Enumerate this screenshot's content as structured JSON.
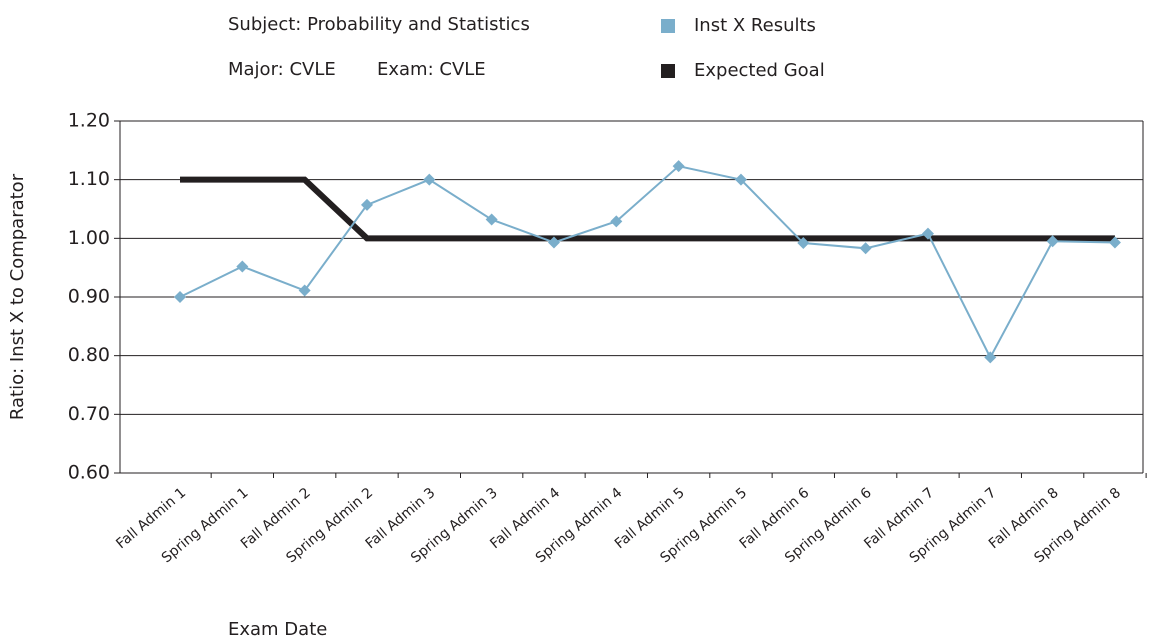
{
  "chart_data": {
    "type": "line",
    "title": "Subject: Probability and Statistics",
    "subtitle": [
      "Major: CVLE",
      "Exam: CVLE"
    ],
    "x_label": "Exam Date",
    "y_label": "Ratio: Inst X to Comparator",
    "categories": [
      "Fall Admin 1",
      "Spring Admin 1",
      "Fall Admin 2",
      "Spring Admin 2",
      "Fall Admin 3",
      "Spring Admin 3",
      "Fall Admin 4",
      "Spring Admin 4",
      "Fall Admin 5",
      "Spring Admin 5",
      "Fall Admin 6",
      "Spring Admin 6",
      "Fall Admin 7",
      "Spring Admin 7",
      "Fall Admin 8",
      "Spring Admin 8"
    ],
    "series": [
      {
        "name": "Inst X Results",
        "color": "#7aaecb",
        "marker": "diamond",
        "values": [
          0.9,
          0.952,
          0.911,
          1.057,
          1.1,
          1.032,
          0.993,
          1.029,
          1.123,
          1.1,
          0.992,
          0.983,
          1.008,
          0.797,
          0.995,
          0.993
        ]
      },
      {
        "name": "Expected Goal",
        "color": "#231f20",
        "marker": null,
        "values": [
          1.1,
          1.1,
          1.1,
          1.0,
          1.0,
          1.0,
          1.0,
          1.0,
          1.0,
          1.0,
          1.0,
          1.0,
          1.0,
          1.0,
          1.0,
          1.0
        ]
      }
    ],
    "ylim": [
      0.6,
      1.2
    ],
    "yticks": [
      {
        "value": 0.6,
        "label": "0.60"
      },
      {
        "value": 0.7,
        "label": "0.70"
      },
      {
        "value": 0.8,
        "label": "0.80"
      },
      {
        "value": 0.9,
        "label": "0.90"
      },
      {
        "value": 1.0,
        "label": "1.00"
      },
      {
        "value": 1.1,
        "label": "1.10"
      },
      {
        "value": 1.2,
        "label": "1.20"
      }
    ],
    "grid": true
  }
}
